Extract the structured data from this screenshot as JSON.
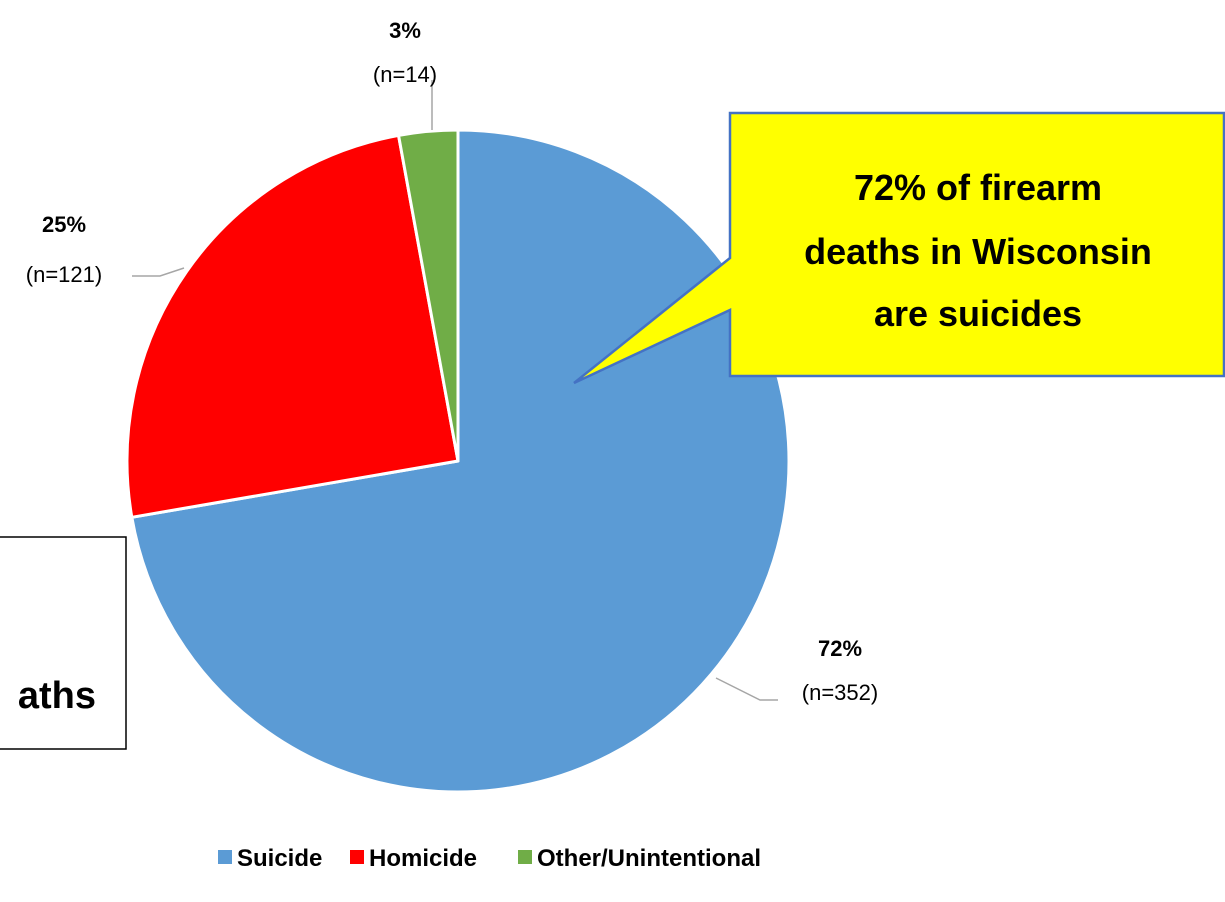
{
  "chart_data": {
    "type": "pie",
    "title": "",
    "slices": [
      {
        "name": "Suicide",
        "value": 352,
        "percent_label": "72%",
        "count_label": "(n=352)",
        "color": "#5b9bd5"
      },
      {
        "name": "Homicide",
        "value": 121,
        "percent_label": "25%",
        "count_label": "(n=121)",
        "color": "#ff0000"
      },
      {
        "name": "Other/Unintentional",
        "value": 14,
        "percent_label": "3%",
        "count_label": "(n=14)",
        "color": "#70ad47"
      }
    ],
    "legend": {
      "placement": "bottom",
      "entries": [
        "Suicide",
        "Homicide",
        "Other/Unintentional"
      ]
    }
  },
  "callout": {
    "lines": [
      "72% of firearm",
      "deaths in Wisconsin",
      "are suicides"
    ],
    "background": "#ffff00",
    "border": "#4472c4"
  },
  "partial_box": {
    "text": "aths"
  }
}
